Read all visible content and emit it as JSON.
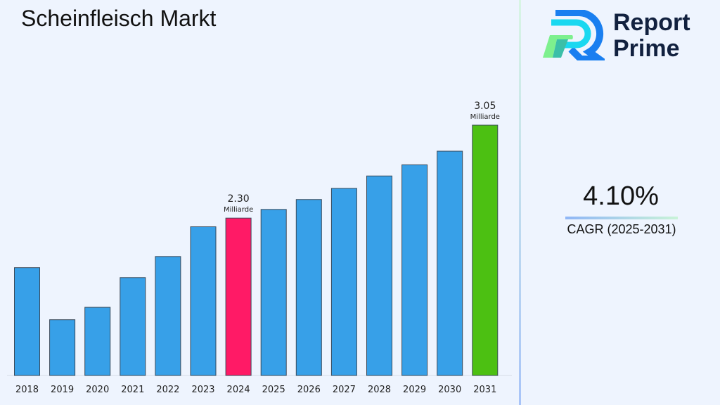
{
  "header": {
    "title": "Scheinfleisch Markt"
  },
  "brand": {
    "line1": "Report",
    "line2": "Prime"
  },
  "cagr": {
    "value": "4.10%",
    "label": "CAGR (2025-2031)"
  },
  "colors": {
    "default_bar": "#37a0e8",
    "highlight_2024": "#ff1a66",
    "highlight_2031": "#4cc012",
    "background": "#eef4fe"
  },
  "chart_data": {
    "type": "bar",
    "title": "Scheinfleisch Markt",
    "xlabel": "",
    "ylabel": "",
    "categories": [
      "2018",
      "2019",
      "2020",
      "2021",
      "2022",
      "2023",
      "2024",
      "2025",
      "2026",
      "2027",
      "2028",
      "2029",
      "2030",
      "2031"
    ],
    "values": [
      1.9,
      1.48,
      1.58,
      1.82,
      1.99,
      2.23,
      2.3,
      2.37,
      2.45,
      2.54,
      2.64,
      2.73,
      2.84,
      3.05
    ],
    "ylim": [
      1.03,
      3.05
    ],
    "grid": false,
    "annotations": [
      {
        "category": "2024",
        "value": "2.30",
        "unit": "Milliarde"
      },
      {
        "category": "2031",
        "value": "3.05",
        "unit": "Milliarde"
      }
    ]
  }
}
